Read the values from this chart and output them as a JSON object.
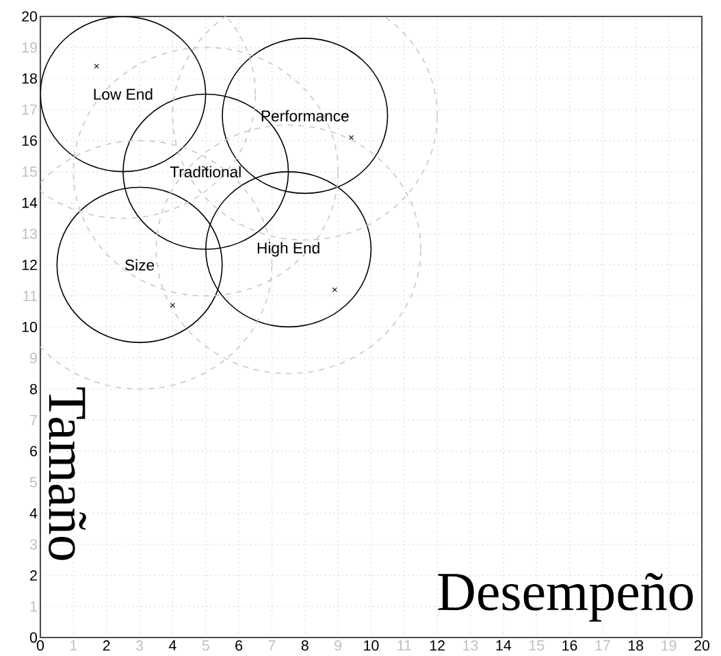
{
  "chart_data": {
    "type": "bubble",
    "xlabel": "Desempeño",
    "ylabel": "Tamaño",
    "xlim": [
      0,
      20
    ],
    "ylim": [
      0,
      20
    ],
    "xticks": [
      0,
      1,
      2,
      3,
      4,
      5,
      6,
      7,
      8,
      9,
      10,
      11,
      12,
      13,
      14,
      15,
      16,
      17,
      18,
      19,
      20
    ],
    "yticks": [
      0,
      1,
      2,
      3,
      4,
      5,
      6,
      7,
      8,
      9,
      10,
      11,
      12,
      13,
      14,
      15,
      16,
      17,
      18,
      19,
      20
    ],
    "grid": true,
    "series": [
      {
        "color": "#000000",
        "line_style": "solid",
        "x": [
          2.5,
          8.0,
          5.0,
          3.0,
          7.5
        ],
        "values": [
          17.5,
          16.8,
          15.0,
          12.0,
          12.5
        ],
        "sizes": [
          0.39,
          0.39,
          0.39,
          0.39,
          0.39
        ]
      },
      {
        "color": "#c8c8c8",
        "line_style": "dashed",
        "x": [
          2.5,
          8.0,
          5.0,
          3.0,
          7.5
        ],
        "values": [
          17.5,
          16.8,
          15.0,
          12.0,
          12.5
        ],
        "sizes": [
          1,
          1,
          1,
          1,
          1
        ]
      },
      {
        "type": "scatter",
        "color": "#000000",
        "marker": "cross",
        "x": [
          1.7,
          9.4,
          5.0,
          4.0,
          8.9
        ],
        "values": [
          18.4,
          16.1,
          15.1,
          10.7,
          11.2
        ]
      }
    ],
    "annotations": [
      {
        "text": "Low End",
        "x": 2.5,
        "y": 17.5
      },
      {
        "text": "Performance",
        "x": 8.0,
        "y": 16.8
      },
      {
        "text": "Traditional",
        "x": 5.0,
        "y": 15.0
      },
      {
        "text": "Size",
        "x": 3.0,
        "y": 12.0
      },
      {
        "text": "High End",
        "x": 7.5,
        "y": 12.5
      }
    ]
  }
}
